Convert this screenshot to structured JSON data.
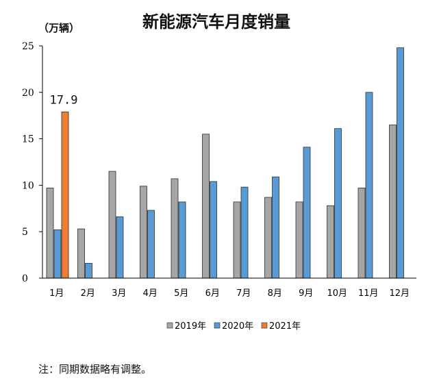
{
  "chart_data": {
    "type": "bar",
    "title": "新能源汽车月度销量",
    "ylabel": "（万辆）",
    "ylim": [
      0,
      25
    ],
    "yticks": [
      "0",
      "5",
      "10",
      "15",
      "20",
      "25"
    ],
    "categories": [
      "1月",
      "2月",
      "3月",
      "4月",
      "5月",
      "6月",
      "7月",
      "8月",
      "9月",
      "10月",
      "11月",
      "12月"
    ],
    "series": [
      {
        "name": "2019年",
        "color": "#a6a6a6",
        "values": [
          9.7,
          5.3,
          11.5,
          9.9,
          10.7,
          15.5,
          8.2,
          8.7,
          8.2,
          7.8,
          9.7,
          16.5
        ]
      },
      {
        "name": "2020年",
        "color": "#5b9bd5",
        "values": [
          5.2,
          1.6,
          6.6,
          7.3,
          8.2,
          10.4,
          9.8,
          10.9,
          14.1,
          16.1,
          20.0,
          24.8
        ]
      },
      {
        "name": "2021年",
        "color": "#ed7d31",
        "values": [
          17.9,
          null,
          null,
          null,
          null,
          null,
          null,
          null,
          null,
          null,
          null,
          null
        ]
      }
    ],
    "annotation": {
      "text": "17.9"
    },
    "legend": "bottom",
    "grid": false
  },
  "note": "注：同期数据略有调整。"
}
